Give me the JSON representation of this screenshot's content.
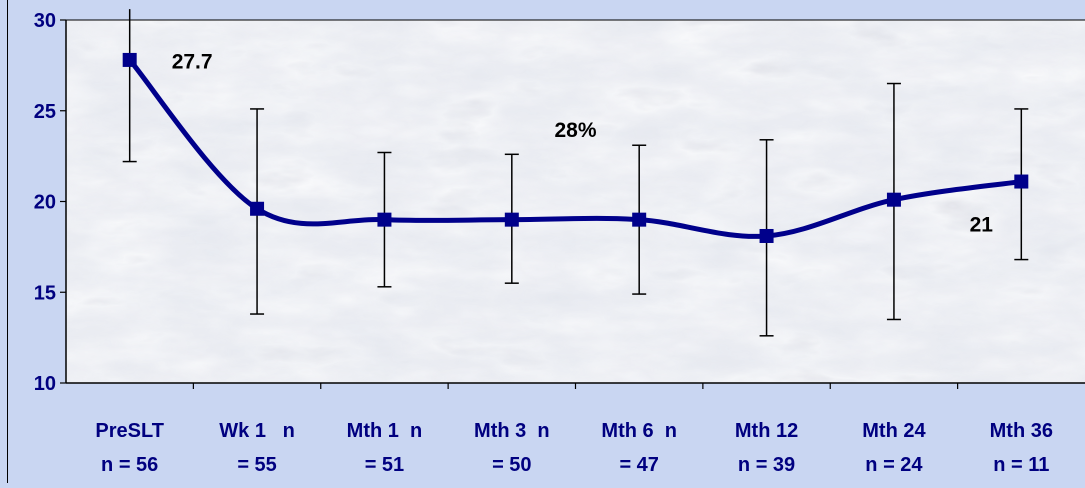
{
  "chart_data": {
    "type": "line",
    "title": "",
    "xlabel": "",
    "ylabel": "",
    "ylim": [
      10,
      30
    ],
    "yticks": [
      10,
      15,
      20,
      25,
      30
    ],
    "categories": [
      [
        "PreSLT",
        "n = 56"
      ],
      [
        "Wk 1   n",
        "= 55"
      ],
      [
        "Mth 1  n",
        "= 51"
      ],
      [
        "Mth 3  n",
        "= 50"
      ],
      [
        "Mth 6  n",
        "= 47"
      ],
      [
        "Mth 12",
        "n = 39"
      ],
      [
        "Mth 24",
        "n = 24"
      ],
      [
        "Mth 36",
        "n = 11"
      ]
    ],
    "series": [
      {
        "values": [
          27.8,
          19.6,
          19.0,
          19.0,
          19.0,
          18.1,
          20.1,
          21.1
        ],
        "error_low": [
          22.2,
          13.8,
          15.3,
          15.5,
          14.9,
          12.6,
          13.5,
          16.8
        ],
        "error_high": [
          30.6,
          25.1,
          22.7,
          22.6,
          23.1,
          23.4,
          26.5,
          25.1
        ]
      }
    ],
    "annotations": [
      "27.7",
      "28%",
      "21"
    ],
    "grid": false,
    "colors": {
      "line": "#00008b",
      "background": "#c9d6f2",
      "plot_area": "#e5e8ef",
      "text": "#000080"
    }
  }
}
